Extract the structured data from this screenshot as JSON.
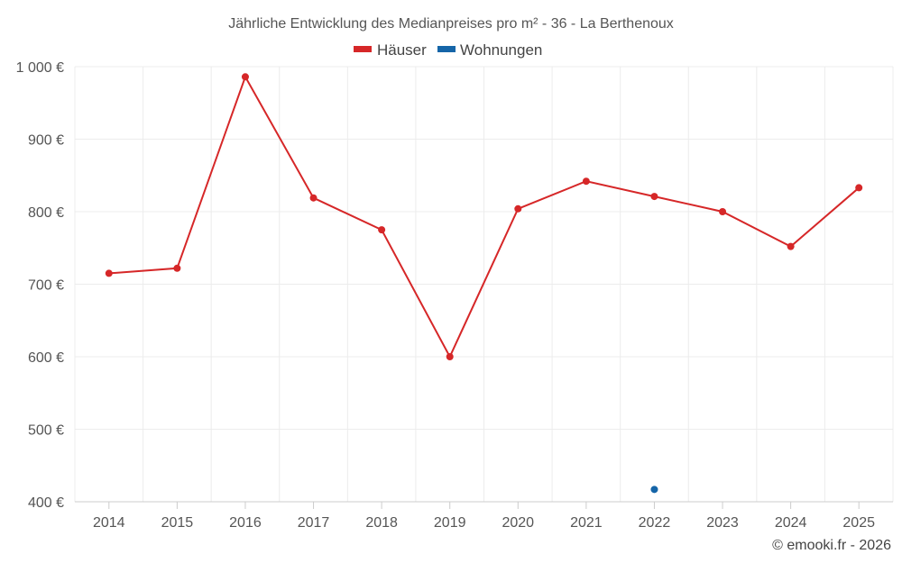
{
  "chart_data": {
    "type": "line",
    "title": "Jährliche Entwicklung des Medianpreises pro m² - 36 - La Berthenoux",
    "categories": [
      "2014",
      "2015",
      "2016",
      "2017",
      "2018",
      "2019",
      "2020",
      "2021",
      "2022",
      "2023",
      "2024",
      "2025"
    ],
    "series": [
      {
        "name": "Häuser",
        "color": "#d62728",
        "values": [
          715,
          722,
          986,
          819,
          775,
          600,
          804,
          842,
          821,
          800,
          752,
          833
        ]
      },
      {
        "name": "Wohnungen",
        "color": "#1565a8",
        "values": [
          null,
          null,
          null,
          null,
          null,
          null,
          null,
          null,
          417,
          null,
          null,
          null
        ]
      }
    ],
    "ylim": [
      400,
      1000
    ],
    "yticks": [
      400,
      500,
      600,
      700,
      800,
      900,
      1000
    ],
    "ytick_labels": [
      "400 €",
      "500 €",
      "600 €",
      "700 €",
      "800 €",
      "900 €",
      "1 000 €"
    ],
    "grid": true,
    "legend_position": "top-center",
    "credit": "© emooki.fr - 2026"
  }
}
